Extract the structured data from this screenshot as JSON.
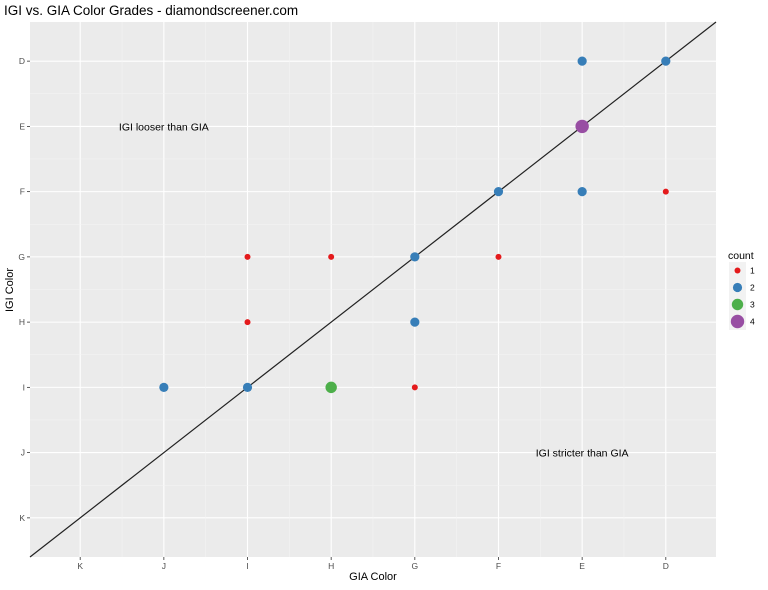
{
  "chart_data": {
    "type": "scatter",
    "title": "IGI vs. GIA Color Grades - diamondscreener.com",
    "xlabel": "GIA Color",
    "ylabel": "IGI Color",
    "x_categories": [
      "K",
      "J",
      "I",
      "H",
      "G",
      "F",
      "E",
      "D"
    ],
    "y_categories": [
      "K",
      "J",
      "I",
      "H",
      "G",
      "F",
      "E",
      "D"
    ],
    "grid": true,
    "reference_line": "y = x",
    "annotations": [
      {
        "text": "IGI looser than GIA",
        "x": "J",
        "y": "E"
      },
      {
        "text": "IGI stricter than GIA",
        "x": "E",
        "y": "J"
      }
    ],
    "legend": {
      "title": "count",
      "position": "right",
      "entries": [
        {
          "label": "1",
          "value": 1,
          "color": "#E41A1C"
        },
        {
          "label": "2",
          "value": 2,
          "color": "#377EB8"
        },
        {
          "label": "3",
          "value": 3,
          "color": "#4DAF4A"
        },
        {
          "label": "4",
          "value": 4,
          "color": "#984EA3"
        }
      ]
    },
    "points": [
      {
        "x": "E",
        "y": "D",
        "count": 2
      },
      {
        "x": "D",
        "y": "D",
        "count": 2
      },
      {
        "x": "E",
        "y": "E",
        "count": 4
      },
      {
        "x": "F",
        "y": "F",
        "count": 2
      },
      {
        "x": "E",
        "y": "F",
        "count": 2
      },
      {
        "x": "D",
        "y": "F",
        "count": 1
      },
      {
        "x": "I",
        "y": "G",
        "count": 1
      },
      {
        "x": "H",
        "y": "G",
        "count": 1
      },
      {
        "x": "G",
        "y": "G",
        "count": 2
      },
      {
        "x": "F",
        "y": "G",
        "count": 1
      },
      {
        "x": "I",
        "y": "H",
        "count": 1
      },
      {
        "x": "G",
        "y": "H",
        "count": 2
      },
      {
        "x": "J",
        "y": "I",
        "count": 2
      },
      {
        "x": "I",
        "y": "I",
        "count": 2
      },
      {
        "x": "H",
        "y": "I",
        "count": 3
      },
      {
        "x": "G",
        "y": "I",
        "count": 1
      }
    ]
  }
}
